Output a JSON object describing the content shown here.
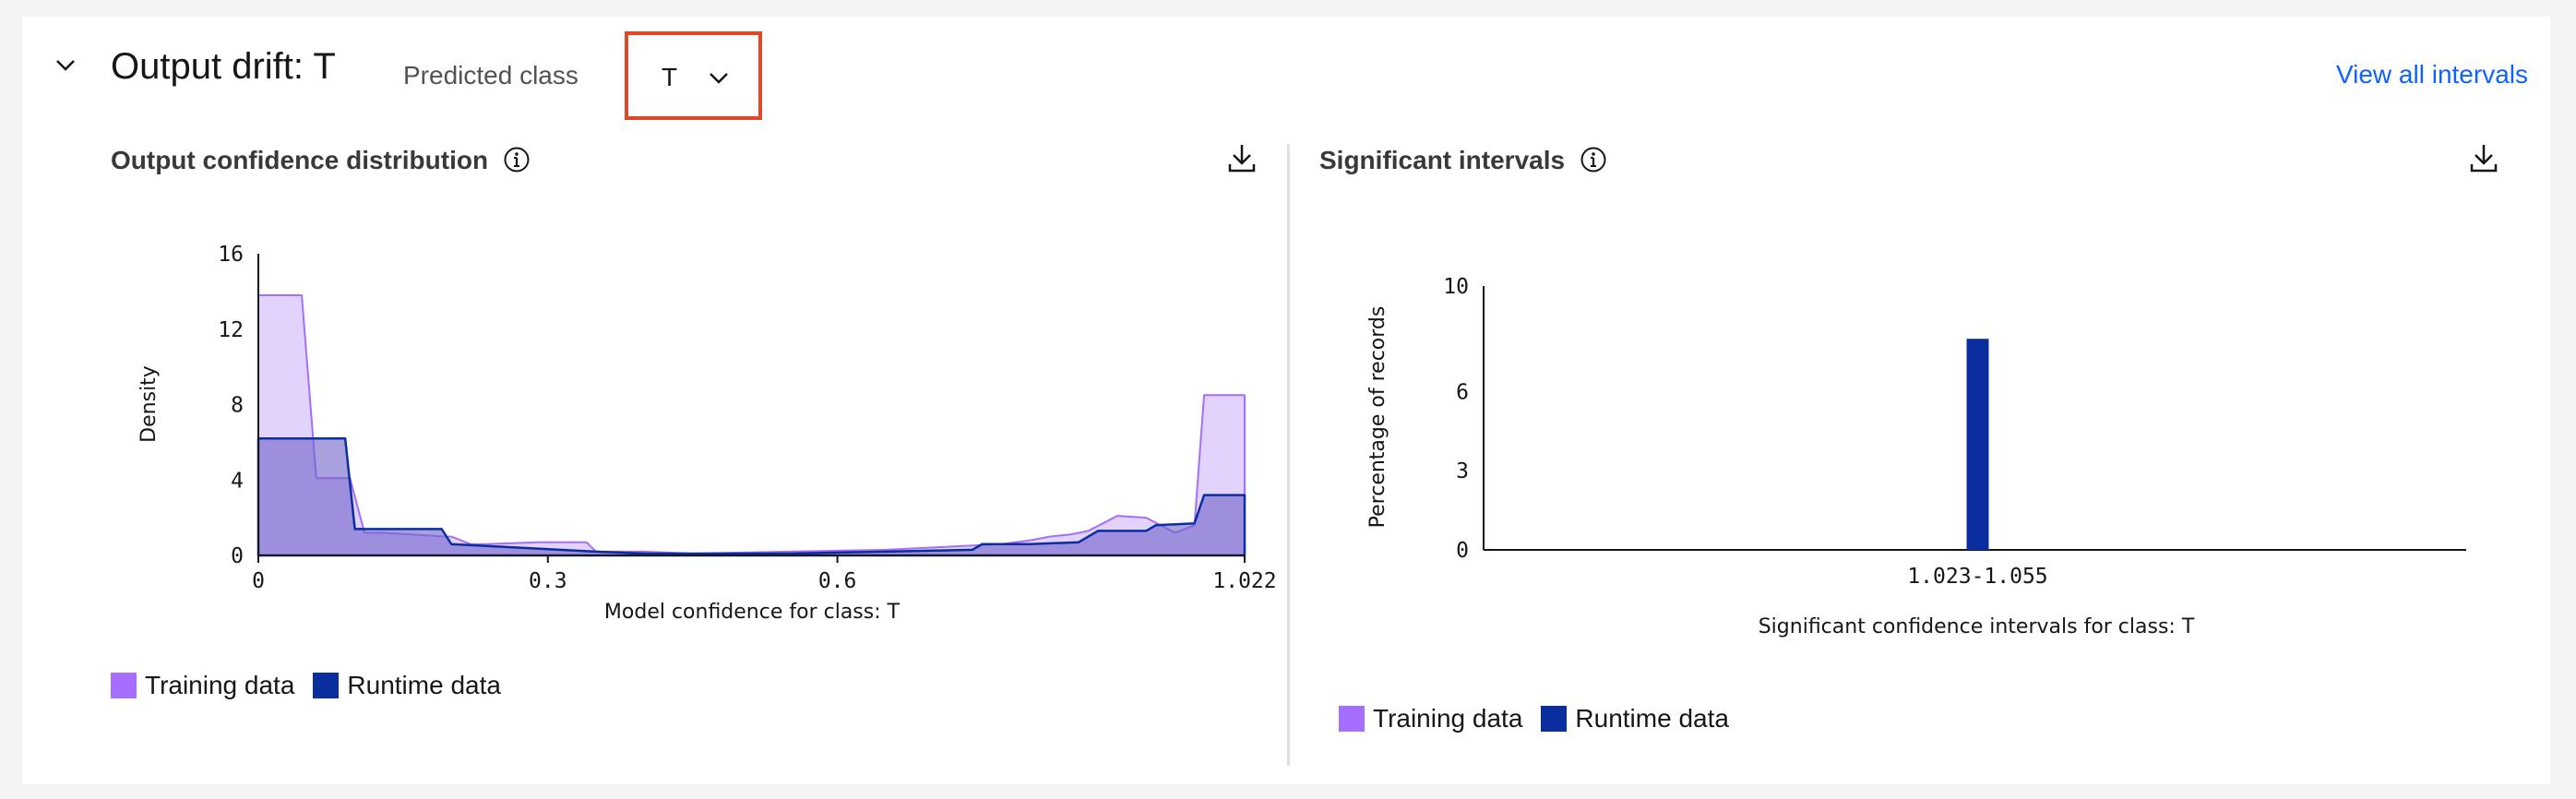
{
  "header": {
    "title": "Output drift: T",
    "predicted_class_label": "Predicted class",
    "predicted_class_value": "T",
    "view_all_label": "View all intervals"
  },
  "colors": {
    "training": "#a56eff",
    "training_fill": "#dccbfb",
    "runtime": "#0b2e9e",
    "link": "#0f62fe",
    "highlight": "#e0462a"
  },
  "left_panel": {
    "title": "Output confidence distribution",
    "xlabel": "Model confidence for class: T",
    "ylabel": "Density",
    "legend": {
      "training": "Training data",
      "runtime": "Runtime data"
    }
  },
  "right_panel": {
    "title": "Significant intervals",
    "xlabel": "Significant confidence intervals for class: T",
    "ylabel": "Percentage of records",
    "legend": {
      "training": "Training data",
      "runtime": "Runtime data"
    }
  },
  "chart_data": [
    {
      "type": "area",
      "xlim": [
        0,
        1.022
      ],
      "ylim": [
        0,
        16
      ],
      "x_ticks": [
        "0",
        "0.3",
        "0.6",
        "1.022"
      ],
      "x_tick_values": [
        0,
        0.3,
        0.6,
        1.022
      ],
      "y_ticks": [
        "0",
        "4",
        "8",
        "12",
        "16"
      ],
      "y_tick_values": [
        0,
        4,
        8,
        12,
        16
      ],
      "series": [
        {
          "name": "Training data",
          "x": [
            0,
            0.045,
            0.06,
            0.095,
            0.11,
            0.13,
            0.195,
            0.2,
            0.22,
            0.235,
            0.29,
            0.3,
            0.34,
            0.35,
            0.4,
            0.45,
            0.55,
            0.65,
            0.77,
            0.8,
            0.82,
            0.84,
            0.86,
            0.89,
            0.92,
            0.95,
            0.97,
            0.98,
            1.0,
            1.022
          ],
          "y": [
            13.8,
            13.8,
            4.1,
            4.1,
            1.2,
            1.2,
            1.0,
            1.0,
            0.6,
            0.6,
            0.7,
            0.7,
            0.7,
            0.2,
            0.2,
            0.1,
            0.2,
            0.3,
            0.6,
            0.8,
            1.0,
            1.1,
            1.3,
            2.1,
            2.0,
            1.2,
            1.6,
            8.5,
            8.5,
            8.5
          ]
        },
        {
          "name": "Runtime data",
          "x": [
            0,
            0.06,
            0.09,
            0.1,
            0.19,
            0.2,
            0.2,
            0.35,
            0.4,
            0.45,
            0.55,
            0.65,
            0.74,
            0.75,
            0.78,
            0.8,
            0.85,
            0.87,
            0.92,
            0.93,
            0.97,
            0.98,
            1.0,
            1.022
          ],
          "y": [
            6.2,
            6.2,
            6.2,
            1.4,
            1.4,
            0.6,
            0.6,
            0.2,
            0.1,
            0.1,
            0.1,
            0.2,
            0.3,
            0.6,
            0.6,
            0.6,
            0.7,
            1.3,
            1.3,
            1.6,
            1.7,
            3.2,
            3.2,
            3.2
          ]
        }
      ]
    },
    {
      "type": "bar",
      "categories": [
        "1.023-1.055"
      ],
      "ylim": [
        0,
        10
      ],
      "y_ticks": [
        "0",
        "3",
        "6",
        "10"
      ],
      "y_tick_values": [
        0,
        3,
        6,
        10
      ],
      "series": [
        {
          "name": "Training data",
          "values": [
            0
          ]
        },
        {
          "name": "Runtime data",
          "values": [
            8
          ]
        }
      ]
    }
  ]
}
